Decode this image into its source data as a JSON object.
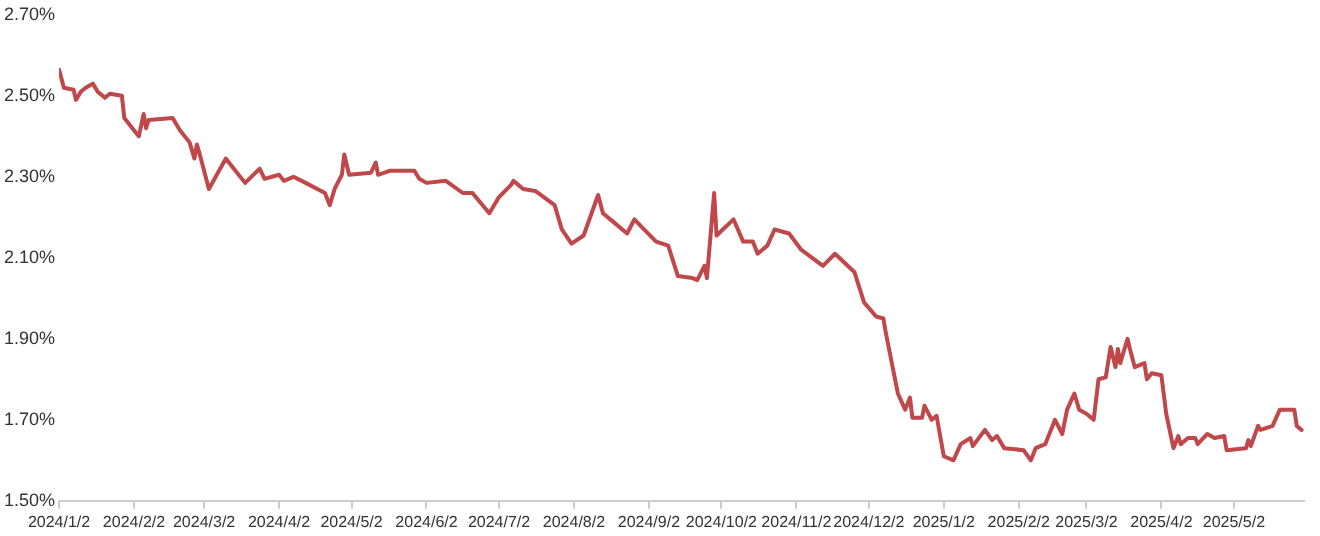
{
  "chart_data": {
    "type": "line",
    "x": [
      "2024-01-02",
      "2024-01-04",
      "2024-01-08",
      "2024-01-09",
      "2024-01-11",
      "2024-01-13",
      "2024-01-16",
      "2024-01-18",
      "2024-01-21",
      "2024-01-23",
      "2024-01-28",
      "2024-01-29",
      "2024-02-02",
      "2024-02-04",
      "2024-02-06",
      "2024-02-07",
      "2024-02-08",
      "2024-02-18",
      "2024-02-21",
      "2024-02-25",
      "2024-02-27",
      "2024-02-28",
      "2024-02-29",
      "2024-03-04",
      "2024-03-11",
      "2024-03-13",
      "2024-03-19",
      "2024-03-25",
      "2024-03-27",
      "2024-04-02",
      "2024-04-04",
      "2024-04-08",
      "2024-04-13",
      "2024-04-21",
      "2024-04-23",
      "2024-04-25",
      "2024-04-28",
      "2024-04-29",
      "2024-05-01",
      "2024-05-10",
      "2024-05-12",
      "2024-05-13",
      "2024-05-18",
      "2024-05-28",
      "2024-05-30",
      "2024-06-02",
      "2024-06-10",
      "2024-06-17",
      "2024-06-21",
      "2024-06-28",
      "2024-07-02",
      "2024-07-07",
      "2024-07-08",
      "2024-07-12",
      "2024-07-17",
      "2024-07-25",
      "2024-07-28",
      "2024-08-01",
      "2024-08-06",
      "2024-08-09",
      "2024-08-12",
      "2024-08-14",
      "2024-08-19",
      "2024-08-24",
      "2024-08-27",
      "2024-08-31",
      "2024-09-05",
      "2024-09-10",
      "2024-09-14",
      "2024-09-20",
      "2024-09-22",
      "2024-09-25",
      "2024-09-26",
      "2024-09-29",
      "2024-09-30",
      "2024-10-07",
      "2024-10-11",
      "2024-10-15",
      "2024-10-17",
      "2024-10-21",
      "2024-10-24",
      "2024-10-30",
      "2024-11-04",
      "2024-11-13",
      "2024-11-18",
      "2024-11-26",
      "2024-11-30",
      "2024-12-05",
      "2024-12-08",
      "2024-12-09",
      "2024-12-12",
      "2024-12-14",
      "2024-12-17",
      "2024-12-19",
      "2024-12-20",
      "2024-12-24",
      "2024-12-25",
      "2024-12-28",
      "2024-12-30",
      "2025-01-02",
      "2025-01-06",
      "2025-01-09",
      "2025-01-13",
      "2025-01-14",
      "2025-01-19",
      "2025-01-22",
      "2025-01-24",
      "2025-01-27",
      "2025-02-04",
      "2025-02-07",
      "2025-02-09",
      "2025-02-13",
      "2025-02-17",
      "2025-02-20",
      "2025-02-22",
      "2025-02-25",
      "2025-02-27",
      "2025-03-02",
      "2025-03-05",
      "2025-03-07",
      "2025-03-10",
      "2025-03-12",
      "2025-03-14",
      "2025-03-15",
      "2025-03-16",
      "2025-03-19",
      "2025-03-20",
      "2025-03-22",
      "2025-03-26",
      "2025-03-27",
      "2025-03-29",
      "2025-04-02",
      "2025-04-04",
      "2025-04-07",
      "2025-04-09",
      "2025-04-10",
      "2025-04-13",
      "2025-04-16",
      "2025-04-17",
      "2025-04-21",
      "2025-04-24",
      "2025-04-28",
      "2025-04-29",
      "2025-05-07",
      "2025-05-08",
      "2025-05-09",
      "2025-05-12",
      "2025-05-13",
      "2025-05-18",
      "2025-05-21",
      "2025-05-27",
      "2025-05-28",
      "2025-05-30"
    ],
    "series": [
      {
        "color": "#c0474a",
        "values": [
          2.565,
          2.52,
          2.515,
          2.49,
          2.51,
          2.52,
          2.53,
          2.51,
          2.495,
          2.505,
          2.5,
          2.445,
          2.415,
          2.4,
          2.455,
          2.42,
          2.44,
          2.445,
          2.415,
          2.385,
          2.345,
          2.38,
          2.36,
          2.27,
          2.345,
          2.33,
          2.285,
          2.32,
          2.295,
          2.305,
          2.29,
          2.3,
          2.285,
          2.26,
          2.23,
          2.27,
          2.305,
          2.355,
          2.305,
          2.31,
          2.335,
          2.305,
          2.315,
          2.315,
          2.295,
          2.285,
          2.29,
          2.26,
          2.26,
          2.21,
          2.25,
          2.28,
          2.29,
          2.27,
          2.265,
          2.23,
          2.17,
          2.135,
          2.155,
          2.205,
          2.255,
          2.21,
          2.185,
          2.16,
          2.195,
          2.17,
          2.14,
          2.13,
          2.055,
          2.05,
          2.045,
          2.08,
          2.05,
          2.26,
          2.155,
          2.195,
          2.14,
          2.14,
          2.11,
          2.13,
          2.17,
          2.16,
          2.12,
          2.08,
          2.11,
          2.065,
          1.99,
          1.955,
          1.95,
          1.915,
          1.825,
          1.765,
          1.725,
          1.755,
          1.705,
          1.705,
          1.735,
          1.7,
          1.71,
          1.61,
          1.6,
          1.64,
          1.655,
          1.635,
          1.675,
          1.65,
          1.66,
          1.63,
          1.625,
          1.6,
          1.63,
          1.64,
          1.7,
          1.665,
          1.725,
          1.765,
          1.725,
          1.715,
          1.7,
          1.8,
          1.805,
          1.88,
          1.83,
          1.875,
          1.84,
          1.9,
          1.875,
          1.83,
          1.84,
          1.8,
          1.815,
          1.81,
          1.715,
          1.63,
          1.66,
          1.64,
          1.655,
          1.655,
          1.64,
          1.665,
          1.655,
          1.66,
          1.625,
          1.63,
          1.65,
          1.635,
          1.685,
          1.675,
          1.685,
          1.725,
          1.725,
          1.685,
          1.675
        ]
      }
    ],
    "xlim": [
      "2024-01-02",
      "2025-05-31"
    ],
    "xticks": [
      {
        "value": "2024-01-02",
        "label": "2024/1/2"
      },
      {
        "value": "2024-02-02",
        "label": "2024/2/2"
      },
      {
        "value": "2024-03-02",
        "label": "2024/3/2"
      },
      {
        "value": "2024-04-02",
        "label": "2024/4/2"
      },
      {
        "value": "2024-05-02",
        "label": "2024/5/2"
      },
      {
        "value": "2024-06-02",
        "label": "2024/6/2"
      },
      {
        "value": "2024-07-02",
        "label": "2024/7/2"
      },
      {
        "value": "2024-08-02",
        "label": "2024/8/2"
      },
      {
        "value": "2024-09-02",
        "label": "2024/9/2"
      },
      {
        "value": "2024-10-02",
        "label": "2024/10/2"
      },
      {
        "value": "2024-11-02",
        "label": "2024/11/2"
      },
      {
        "value": "2024-12-02",
        "label": "2024/12/2"
      },
      {
        "value": "2025-01-02",
        "label": "2025/1/2"
      },
      {
        "value": "2025-02-02",
        "label": "2025/2/2"
      },
      {
        "value": "2025-03-02",
        "label": "2025/3/2"
      },
      {
        "value": "2025-04-02",
        "label": "2025/4/2"
      },
      {
        "value": "2025-05-02",
        "label": "2025/5/2"
      }
    ],
    "ylim": [
      1.5,
      2.7
    ],
    "yticks": [
      {
        "value": 1.5,
        "label": "1.50%"
      },
      {
        "value": 1.7,
        "label": "1.70%"
      },
      {
        "value": 1.9,
        "label": "1.90%"
      },
      {
        "value": 2.1,
        "label": "2.10%"
      },
      {
        "value": 2.3,
        "label": "2.30%"
      },
      {
        "value": 2.5,
        "label": "2.50%"
      },
      {
        "value": 2.7,
        "label": "2.70%"
      }
    ],
    "grid": false,
    "legend": false,
    "marker": "none",
    "line_style": "solid"
  }
}
